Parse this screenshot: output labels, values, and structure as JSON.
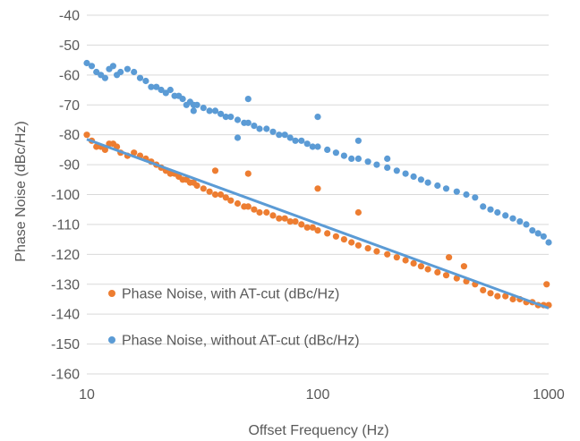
{
  "chart_data": {
    "type": "scatter",
    "xlabel": "Offset Frequency (Hz)",
    "ylabel": "Phase Noise (dBc/Hz)",
    "x_scale": "log",
    "xlim": [
      10,
      1000
    ],
    "ylim": [
      -160,
      -40
    ],
    "x_ticks": [
      10,
      100,
      1000
    ],
    "x_tick_labels": [
      "10",
      "100",
      "1000"
    ],
    "y_ticks": [
      -40,
      -50,
      -60,
      -70,
      -80,
      -90,
      -100,
      -110,
      -120,
      -130,
      -140,
      -150,
      -160
    ],
    "y_tick_labels": [
      "-40",
      "-50",
      "-60",
      "-70",
      "-80",
      "-90",
      "-100",
      "-110",
      "-120",
      "-130",
      "-140",
      "-150",
      "-160"
    ],
    "grid": "horizontal",
    "legend_position": "bottom-left",
    "series": [
      {
        "name": "Phase Noise, with AT-cut (dBc/Hz)",
        "color": "#ED7D31",
        "marker": "dot",
        "points": [
          [
            10,
            -80
          ],
          [
            10.5,
            -82
          ],
          [
            11,
            -84
          ],
          [
            11.5,
            -84
          ],
          [
            12,
            -85
          ],
          [
            12.5,
            -83
          ],
          [
            13,
            -83
          ],
          [
            13.5,
            -84
          ],
          [
            14,
            -86
          ],
          [
            15,
            -87
          ],
          [
            16,
            -86
          ],
          [
            17,
            -87
          ],
          [
            18,
            -88
          ],
          [
            19,
            -89
          ],
          [
            20,
            -90
          ],
          [
            21,
            -91
          ],
          [
            22,
            -92
          ],
          [
            23,
            -93
          ],
          [
            24,
            -93
          ],
          [
            25,
            -94
          ],
          [
            26,
            -95
          ],
          [
            27,
            -95
          ],
          [
            28,
            -96
          ],
          [
            29,
            -96
          ],
          [
            30,
            -97
          ],
          [
            32,
            -98
          ],
          [
            34,
            -99
          ],
          [
            36,
            -100
          ],
          [
            38,
            -100
          ],
          [
            40,
            -101
          ],
          [
            42,
            -102
          ],
          [
            45,
            -103
          ],
          [
            48,
            -104
          ],
          [
            50,
            -104
          ],
          [
            53,
            -105
          ],
          [
            56,
            -106
          ],
          [
            60,
            -106
          ],
          [
            64,
            -107
          ],
          [
            68,
            -108
          ],
          [
            72,
            -108
          ],
          [
            76,
            -109
          ],
          [
            80,
            -109
          ],
          [
            85,
            -110
          ],
          [
            90,
            -111
          ],
          [
            95,
            -111
          ],
          [
            100,
            -112
          ],
          [
            110,
            -113
          ],
          [
            120,
            -114
          ],
          [
            130,
            -115
          ],
          [
            140,
            -116
          ],
          [
            150,
            -117
          ],
          [
            165,
            -118
          ],
          [
            180,
            -119
          ],
          [
            200,
            -120
          ],
          [
            220,
            -121
          ],
          [
            240,
            -122
          ],
          [
            260,
            -123
          ],
          [
            280,
            -124
          ],
          [
            300,
            -125
          ],
          [
            330,
            -126
          ],
          [
            360,
            -127
          ],
          [
            400,
            -128
          ],
          [
            440,
            -129
          ],
          [
            480,
            -130
          ],
          [
            520,
            -132
          ],
          [
            560,
            -133
          ],
          [
            600,
            -134
          ],
          [
            650,
            -134
          ],
          [
            700,
            -135
          ],
          [
            750,
            -135
          ],
          [
            800,
            -136
          ],
          [
            850,
            -136
          ],
          [
            900,
            -137
          ],
          [
            950,
            -137
          ],
          [
            1000,
            -137
          ],
          [
            36,
            -92
          ],
          [
            50,
            -93
          ],
          [
            100,
            -98
          ],
          [
            150,
            -106
          ],
          [
            370,
            -121
          ],
          [
            430,
            -124
          ],
          [
            980,
            -130
          ]
        ]
      },
      {
        "name": "Phase Noise, without AT-cut (dBc/Hz)",
        "color": "#5B9BD5",
        "marker": "dot",
        "points": [
          [
            10,
            -56
          ],
          [
            10.5,
            -57
          ],
          [
            11,
            -59
          ],
          [
            11.5,
            -60
          ],
          [
            12,
            -61
          ],
          [
            12.5,
            -58
          ],
          [
            13,
            -57
          ],
          [
            13.5,
            -60
          ],
          [
            14,
            -59
          ],
          [
            15,
            -58
          ],
          [
            16,
            -59
          ],
          [
            17,
            -61
          ],
          [
            18,
            -62
          ],
          [
            19,
            -64
          ],
          [
            20,
            -64
          ],
          [
            21,
            -65
          ],
          [
            22,
            -66
          ],
          [
            23,
            -65
          ],
          [
            24,
            -67
          ],
          [
            25,
            -67
          ],
          [
            26,
            -68
          ],
          [
            27,
            -70
          ],
          [
            28,
            -69
          ],
          [
            29,
            -70
          ],
          [
            30,
            -70
          ],
          [
            32,
            -71
          ],
          [
            34,
            -72
          ],
          [
            36,
            -72
          ],
          [
            38,
            -73
          ],
          [
            40,
            -74
          ],
          [
            42,
            -74
          ],
          [
            45,
            -75
          ],
          [
            48,
            -76
          ],
          [
            50,
            -76
          ],
          [
            53,
            -77
          ],
          [
            56,
            -78
          ],
          [
            60,
            -78
          ],
          [
            64,
            -79
          ],
          [
            68,
            -80
          ],
          [
            72,
            -80
          ],
          [
            76,
            -81
          ],
          [
            80,
            -82
          ],
          [
            85,
            -82
          ],
          [
            90,
            -83
          ],
          [
            95,
            -84
          ],
          [
            100,
            -84
          ],
          [
            110,
            -85
          ],
          [
            120,
            -86
          ],
          [
            130,
            -87
          ],
          [
            140,
            -88
          ],
          [
            150,
            -88
          ],
          [
            165,
            -89
          ],
          [
            180,
            -90
          ],
          [
            200,
            -91
          ],
          [
            220,
            -92
          ],
          [
            240,
            -93
          ],
          [
            260,
            -94
          ],
          [
            280,
            -95
          ],
          [
            300,
            -96
          ],
          [
            330,
            -97
          ],
          [
            360,
            -98
          ],
          [
            400,
            -99
          ],
          [
            440,
            -100
          ],
          [
            480,
            -101
          ],
          [
            520,
            -104
          ],
          [
            560,
            -105
          ],
          [
            600,
            -106
          ],
          [
            650,
            -107
          ],
          [
            700,
            -108
          ],
          [
            750,
            -109
          ],
          [
            800,
            -110
          ],
          [
            850,
            -112
          ],
          [
            900,
            -113
          ],
          [
            950,
            -114
          ],
          [
            1000,
            -116
          ],
          [
            29,
            -72
          ],
          [
            45,
            -81
          ],
          [
            50,
            -68
          ],
          [
            100,
            -74
          ],
          [
            150,
            -82
          ],
          [
            200,
            -88
          ]
        ]
      },
      {
        "name": "",
        "color": "#5B9BD5",
        "marker": "none",
        "line": true,
        "points": [
          [
            10,
            -81.5
          ],
          [
            1000,
            -138
          ]
        ]
      }
    ]
  }
}
